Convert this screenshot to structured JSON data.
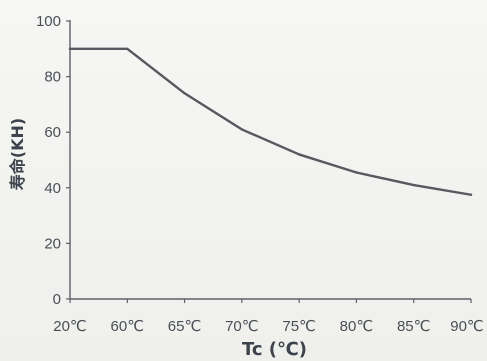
{
  "chart_data": {
    "type": "line",
    "title": "",
    "xlabel": "Tc (℃)",
    "ylabel": "寿命(KH)",
    "categories": [
      "20℃",
      "60℃",
      "65℃",
      "70℃",
      "75℃",
      "80℃",
      "85℃",
      "90℃"
    ],
    "y_ticks": [
      "0",
      "20",
      "40",
      "60",
      "80",
      "100"
    ],
    "ylim": [
      0,
      100
    ],
    "grid": false,
    "legend": "none",
    "line_color": "#56595f",
    "axis_color": "#5c6068",
    "series": [
      {
        "values": [
          90,
          90,
          74,
          61,
          52,
          45.5,
          41,
          37.5
        ]
      }
    ]
  }
}
